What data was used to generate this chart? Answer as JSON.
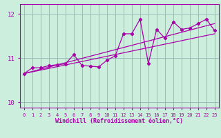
{
  "x": [
    0,
    1,
    2,
    3,
    4,
    5,
    6,
    7,
    8,
    9,
    10,
    11,
    12,
    13,
    14,
    15,
    16,
    17,
    18,
    19,
    20,
    21,
    22,
    23
  ],
  "y_line": [
    10.65,
    10.78,
    10.78,
    10.83,
    10.85,
    10.87,
    11.08,
    10.83,
    10.82,
    10.8,
    10.95,
    11.05,
    11.55,
    11.55,
    11.88,
    10.88,
    11.65,
    11.45,
    11.82,
    11.65,
    11.68,
    11.78,
    11.88,
    11.62
  ],
  "y_reg1_start": 10.65,
  "y_reg1_end": 11.78,
  "y_reg2_start": 10.65,
  "y_reg2_end": 11.55,
  "line_color": "#aa00aa",
  "bg_color": "#cceedd",
  "grid_color": "#99bbbb",
  "xlabel": "Windchill (Refroidissement éolien,°C)",
  "xlim": [
    -0.5,
    23.5
  ],
  "ylim": [
    9.88,
    12.22
  ],
  "yticks": [
    10,
    11,
    12
  ],
  "xticks": [
    0,
    1,
    2,
    3,
    4,
    5,
    6,
    7,
    8,
    9,
    10,
    11,
    12,
    13,
    14,
    15,
    16,
    17,
    18,
    19,
    20,
    21,
    22,
    23
  ]
}
